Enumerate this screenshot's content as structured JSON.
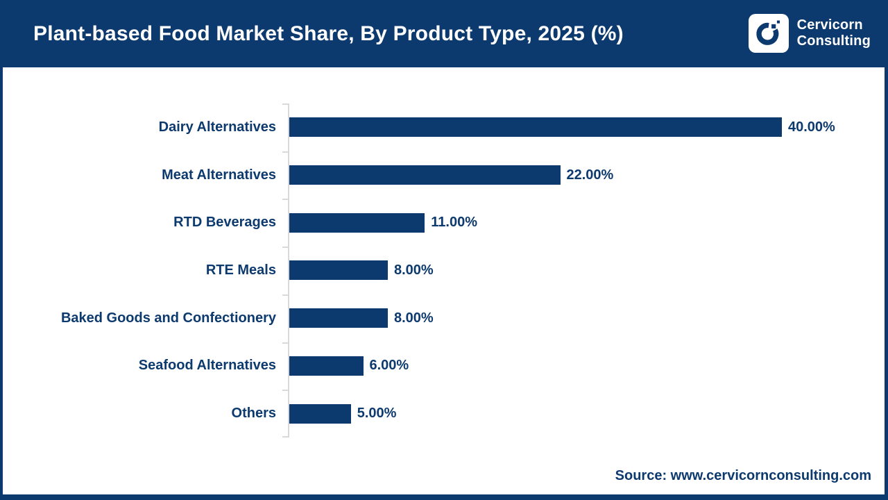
{
  "header": {
    "title": "Plant-based Food Market Share, By Product Type, 2025 (%)"
  },
  "logo": {
    "name_line1": "Cervicorn",
    "name_line2": "Consulting"
  },
  "chart_data": {
    "type": "bar",
    "orientation": "horizontal",
    "title": "Plant-based Food Market Share, By Product Type, 2025 (%)",
    "categories": [
      "Dairy Alternatives",
      "Meat Alternatives",
      "RTD Beverages",
      "RTE Meals",
      "Baked Goods and Confectionery",
      "Seafood Alternatives",
      "Others"
    ],
    "values": [
      40,
      22,
      11,
      8,
      8,
      6,
      5
    ],
    "value_labels": [
      "40.00%",
      "22.00%",
      "11.00%",
      "8.00%",
      "8.00%",
      "6.00%",
      "5.00%"
    ],
    "xlabel": "",
    "ylabel": "",
    "xlim": [
      0,
      40
    ],
    "grid": false,
    "legend": false,
    "bar_color": "#0d3a6e",
    "axis_color": "#d9d9d9",
    "label_color": "#0d3a6e"
  },
  "source": {
    "text": "Source: www.cervicornconsulting.com"
  },
  "colors": {
    "banner_navy": "#0d3a6e",
    "panel_white": "#ffffff",
    "axis_gray": "#d9d9d9"
  }
}
